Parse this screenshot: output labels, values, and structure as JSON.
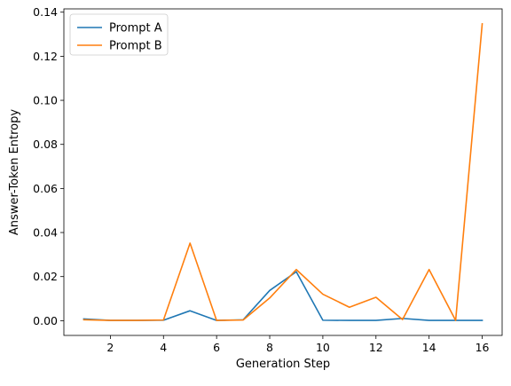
{
  "chart_data": {
    "type": "line",
    "title": "",
    "xlabel": "Generation Step",
    "ylabel": "Answer-Token Entropy",
    "xlim": [
      0.25,
      16.75
    ],
    "ylim": [
      -0.0067,
      0.1415
    ],
    "xticks": [
      2,
      4,
      6,
      8,
      10,
      12,
      14,
      16
    ],
    "yticks": [
      0.0,
      0.02,
      0.04,
      0.06,
      0.08,
      0.1,
      0.12,
      0.14
    ],
    "ytick_labels": [
      "0.00",
      "0.02",
      "0.04",
      "0.06",
      "0.08",
      "0.10",
      "0.12",
      "0.14"
    ],
    "grid": false,
    "legend_position": "top-left",
    "x": [
      1,
      2,
      3,
      4,
      5,
      6,
      7,
      8,
      9,
      10,
      11,
      12,
      13,
      14,
      15,
      16
    ],
    "series": [
      {
        "name": "Prompt A",
        "color": "#1f77b4",
        "values": [
          0.0008,
          0.0001,
          0.0001,
          0.0002,
          0.0045,
          0.0001,
          0.0004,
          0.0137,
          0.0222,
          0.0002,
          0.0001,
          0.0001,
          0.001,
          0.0001,
          0.0001,
          0.0001
        ]
      },
      {
        "name": "Prompt B",
        "color": "#ff7f0e",
        "values": [
          0.0004,
          0.0001,
          0.0001,
          0.0003,
          0.0352,
          0.0001,
          0.0003,
          0.0103,
          0.0232,
          0.012,
          0.0061,
          0.0106,
          0.0005,
          0.0232,
          0.0001,
          0.1347
        ]
      }
    ]
  }
}
